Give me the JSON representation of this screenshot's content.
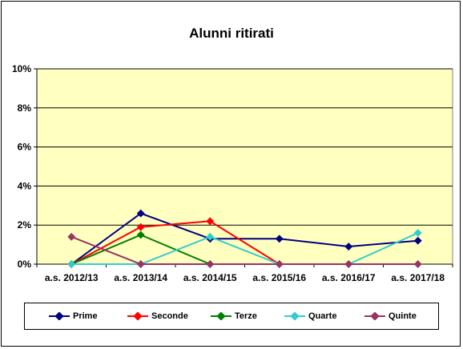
{
  "chart_data": {
    "type": "line",
    "title": "Alunni ritirati",
    "categories": [
      "a.s. 2012/13",
      "a.s. 2013/14",
      "a.s. 2014/15",
      "a.s. 2015/16",
      "a.s. 2016/17",
      "a.s. 2017/18"
    ],
    "y_ticks": [
      "0%",
      "2%",
      "4%",
      "6%",
      "8%",
      "10%"
    ],
    "ylim": [
      0,
      10
    ],
    "grid": true,
    "legend_position": "bottom",
    "plot_background": "#ffffc0",
    "series": [
      {
        "name": "Prime",
        "color": "#000080",
        "values": [
          0,
          2.6,
          1.3,
          1.3,
          0.9,
          1.2
        ]
      },
      {
        "name": "Seconde",
        "color": "#ff0000",
        "values": [
          0,
          1.9,
          2.2,
          0,
          null,
          null
        ]
      },
      {
        "name": "Terze",
        "color": "#008000",
        "values": [
          0,
          1.5,
          0,
          null,
          null,
          null
        ]
      },
      {
        "name": "Quarte",
        "color": "#33cccc",
        "values": [
          0,
          0,
          1.4,
          0,
          0,
          1.6
        ]
      },
      {
        "name": "Quinte",
        "color": "#993366",
        "values": [
          1.4,
          0,
          0,
          0,
          0,
          0
        ]
      }
    ]
  }
}
